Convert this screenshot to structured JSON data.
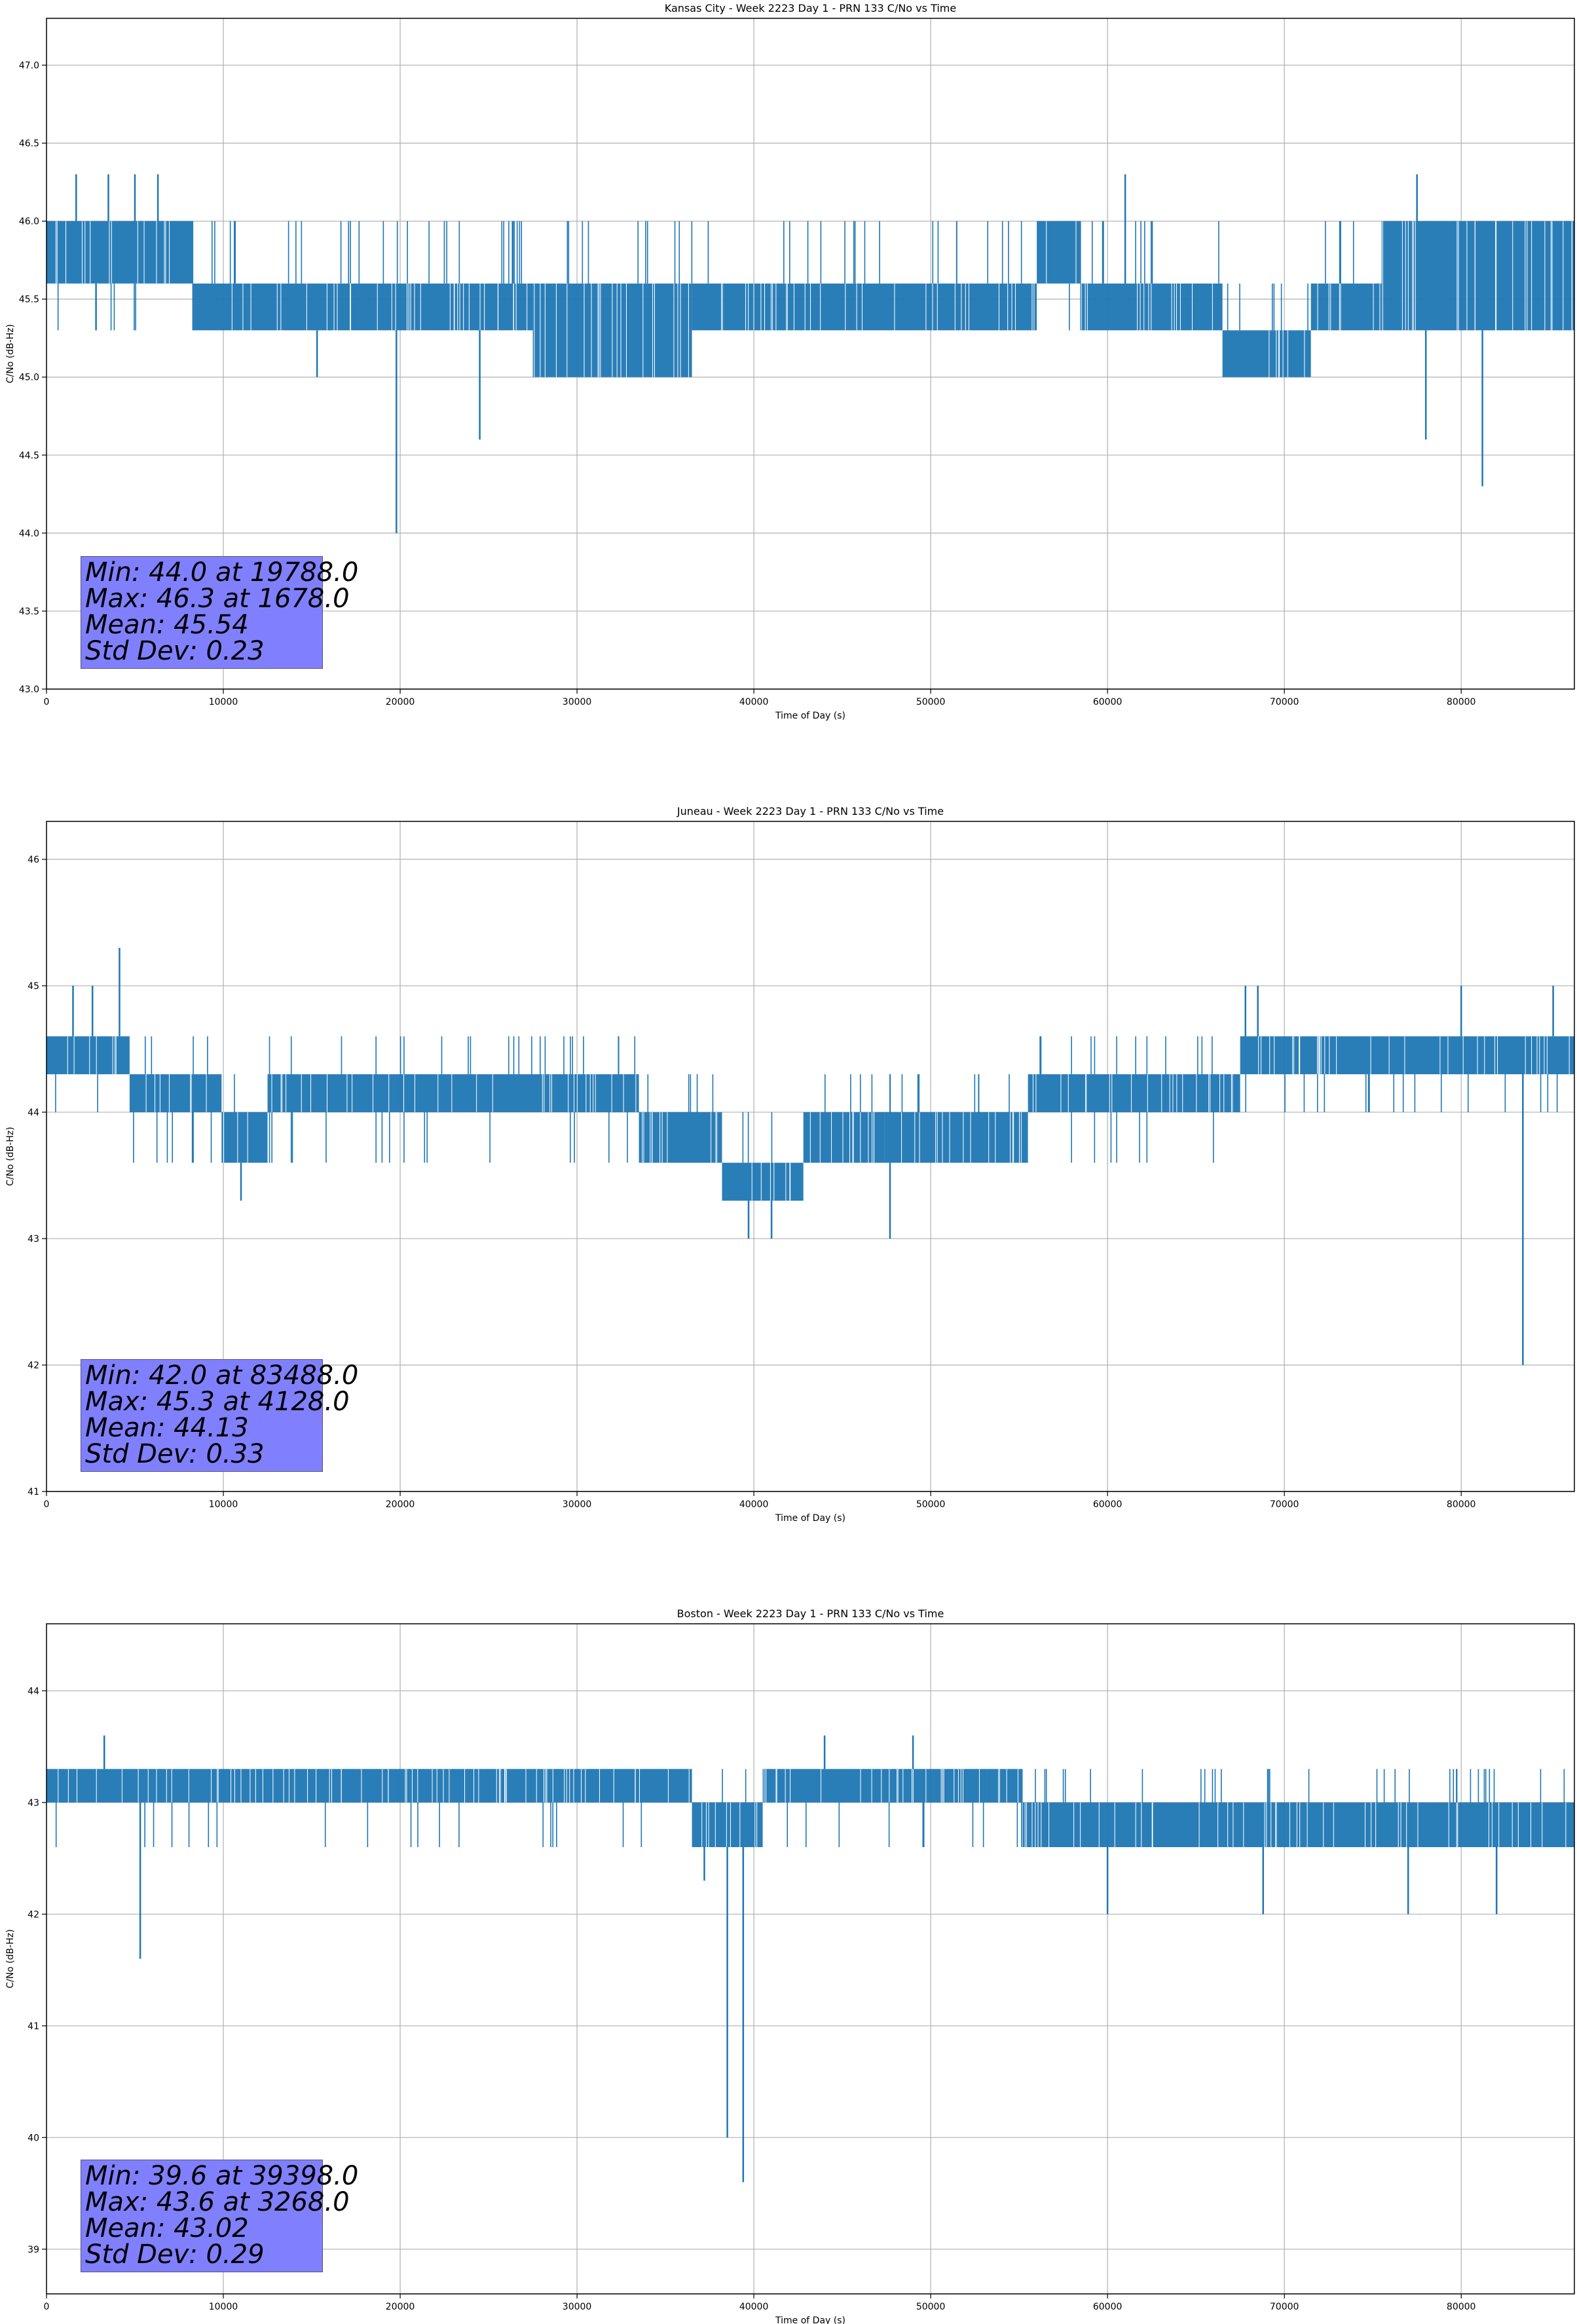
{
  "chart_data": [
    {
      "type": "line",
      "title": "Kansas City - Week 2223 Day 1 - PRN 133 C/No vs Time",
      "xlabel": "Time of Day (s)",
      "ylabel": "C/No (dB-Hz)",
      "xlim": [
        0,
        86400
      ],
      "ylim": [
        43.0,
        47.3
      ],
      "xticks": [
        "0",
        "10000",
        "20000",
        "30000",
        "40000",
        "50000",
        "60000",
        "70000",
        "80000"
      ],
      "yticks": [
        "43.0",
        "43.5",
        "44.0",
        "44.5",
        "45.0",
        "45.5",
        "46.0",
        "46.5",
        "47.0"
      ],
      "grid": true,
      "color": "#1f77b4",
      "levels": [
        45.3,
        45.6,
        46.0
      ],
      "segments": [
        {
          "x": [
            0,
            8300
          ],
          "low": 45.6,
          "high": 46.0
        },
        {
          "x": [
            8300,
            27500
          ],
          "low": 45.3,
          "high": 45.6
        },
        {
          "x": [
            27500,
            36500
          ],
          "low": 45.0,
          "high": 45.6
        },
        {
          "x": [
            36500,
            56000
          ],
          "low": 45.3,
          "high": 45.6
        },
        {
          "x": [
            56000,
            58500
          ],
          "low": 45.6,
          "high": 46.0
        },
        {
          "x": [
            58500,
            66500
          ],
          "low": 45.3,
          "high": 45.6
        },
        {
          "x": [
            66500,
            71500
          ],
          "low": 45.0,
          "high": 45.3
        },
        {
          "x": [
            71500,
            75500
          ],
          "low": 45.3,
          "high": 45.6
        },
        {
          "x": [
            75500,
            86400
          ],
          "low": 45.3,
          "high": 46.0
        }
      ],
      "spikes": [
        {
          "x": 1678,
          "y": 46.3
        },
        {
          "x": 2800,
          "y": 45.3
        },
        {
          "x": 3500,
          "y": 46.3
        },
        {
          "x": 5000,
          "y": 46.3
        },
        {
          "x": 6300,
          "y": 46.3
        },
        {
          "x": 15300,
          "y": 45.0
        },
        {
          "x": 19788,
          "y": 44.0
        },
        {
          "x": 24500,
          "y": 44.6
        },
        {
          "x": 61000,
          "y": 46.3
        },
        {
          "x": 77500,
          "y": 46.3
        },
        {
          "x": 78000,
          "y": 44.6
        },
        {
          "x": 81200,
          "y": 44.3
        }
      ],
      "stats": [
        "Min: 44.0 at 19788.0",
        "Max: 46.3 at 1678.0",
        "Mean: 45.54",
        "Std Dev: 0.23"
      ]
    },
    {
      "type": "line",
      "title": "Juneau - Week 2223 Day 1 - PRN 133 C/No vs Time",
      "xlabel": "Time of Day (s)",
      "ylabel": "C/No (dB-Hz)",
      "xlim": [
        0,
        86400
      ],
      "ylim": [
        41,
        46.3
      ],
      "xticks": [
        "0",
        "10000",
        "20000",
        "30000",
        "40000",
        "50000",
        "60000",
        "70000",
        "80000"
      ],
      "yticks": [
        "41",
        "42",
        "43",
        "44",
        "45",
        "46"
      ],
      "grid": true,
      "color": "#1f77b4",
      "levels": [
        43.6,
        44.0,
        44.3,
        44.6
      ],
      "segments": [
        {
          "x": [
            0,
            4700
          ],
          "low": 44.3,
          "high": 44.6
        },
        {
          "x": [
            4700,
            9900
          ],
          "low": 44.0,
          "high": 44.3
        },
        {
          "x": [
            9900,
            12500
          ],
          "low": 43.6,
          "high": 44.0
        },
        {
          "x": [
            12500,
            33500
          ],
          "low": 44.0,
          "high": 44.3
        },
        {
          "x": [
            33500,
            38200
          ],
          "low": 43.6,
          "high": 44.0
        },
        {
          "x": [
            38200,
            42800
          ],
          "low": 43.3,
          "high": 43.6
        },
        {
          "x": [
            42800,
            47400
          ],
          "low": 43.6,
          "high": 44.0
        },
        {
          "x": [
            47400,
            55500
          ],
          "low": 43.6,
          "high": 44.0
        },
        {
          "x": [
            55500,
            67500
          ],
          "low": 44.0,
          "high": 44.3
        },
        {
          "x": [
            67500,
            86400
          ],
          "low": 44.3,
          "high": 44.6
        }
      ],
      "spikes": [
        {
          "x": 1500,
          "y": 45.0
        },
        {
          "x": 2600,
          "y": 45.0
        },
        {
          "x": 4128,
          "y": 45.3
        },
        {
          "x": 11000,
          "y": 43.3
        },
        {
          "x": 39700,
          "y": 43.0
        },
        {
          "x": 41000,
          "y": 43.0
        },
        {
          "x": 47700,
          "y": 43.0
        },
        {
          "x": 67800,
          "y": 45.0
        },
        {
          "x": 68500,
          "y": 45.0
        },
        {
          "x": 80000,
          "y": 45.0
        },
        {
          "x": 83488,
          "y": 42.0
        },
        {
          "x": 85200,
          "y": 45.0
        }
      ],
      "stats": [
        "Min: 42.0 at 83488.0",
        "Max: 45.3 at 4128.0",
        "Mean: 44.13",
        "Std Dev: 0.33"
      ]
    },
    {
      "type": "line",
      "title": "Boston - Week 2223 Day 1 - PRN 133 C/No vs Time",
      "xlabel": "Time of Day (s)",
      "ylabel": "C/No (dB-Hz)",
      "xlim": [
        0,
        86400
      ],
      "ylim": [
        38.6,
        44.6
      ],
      "xticks": [
        "0",
        "10000",
        "20000",
        "30000",
        "40000",
        "50000",
        "60000",
        "70000",
        "80000"
      ],
      "yticks": [
        "39",
        "40",
        "41",
        "42",
        "43",
        "44"
      ],
      "grid": true,
      "color": "#1f77b4",
      "levels": [
        42.6,
        43.0,
        43.3
      ],
      "segments": [
        {
          "x": [
            0,
            36500
          ],
          "low": 43.0,
          "high": 43.3
        },
        {
          "x": [
            36500,
            40500
          ],
          "low": 42.6,
          "high": 43.0
        },
        {
          "x": [
            40500,
            53200
          ],
          "low": 43.0,
          "high": 43.3
        },
        {
          "x": [
            53200,
            55200
          ],
          "low": 43.0,
          "high": 43.3
        },
        {
          "x": [
            55200,
            86400
          ],
          "low": 42.6,
          "high": 43.0
        }
      ],
      "spikes": [
        {
          "x": 5300,
          "y": 41.6
        },
        {
          "x": 3268,
          "y": 43.6
        },
        {
          "x": 37200,
          "y": 42.3
        },
        {
          "x": 38500,
          "y": 40.0
        },
        {
          "x": 39398,
          "y": 39.6
        },
        {
          "x": 44000,
          "y": 43.6
        },
        {
          "x": 49000,
          "y": 43.6
        },
        {
          "x": 60000,
          "y": 42.0
        },
        {
          "x": 68800,
          "y": 42.0
        },
        {
          "x": 77000,
          "y": 42.0
        },
        {
          "x": 82000,
          "y": 42.0
        }
      ],
      "stats": [
        "Min: 39.6 at 39398.0",
        "Max: 43.6 at 3268.0",
        "Mean: 43.02",
        "Std Dev: 0.29"
      ]
    }
  ]
}
